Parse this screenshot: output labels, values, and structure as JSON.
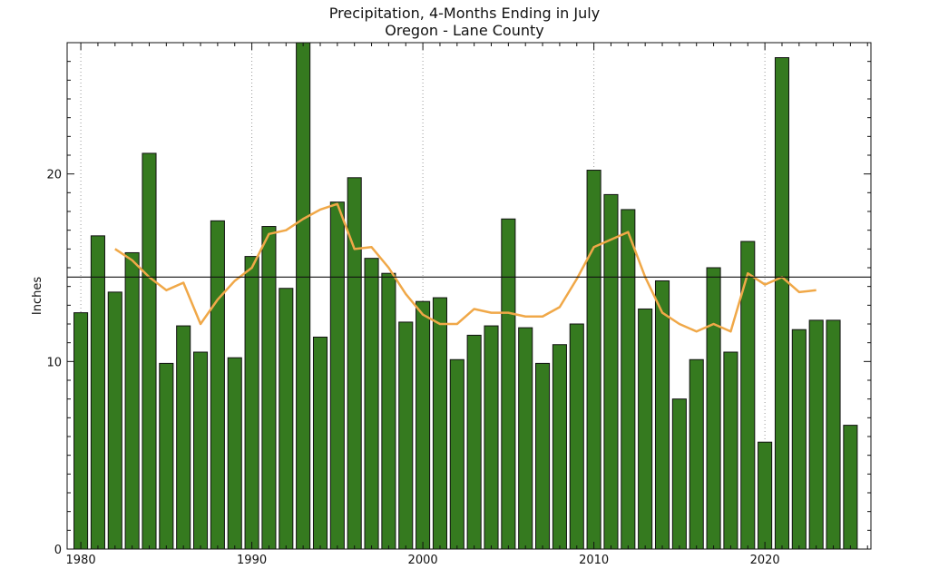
{
  "chart_data": {
    "type": "bar",
    "title": "Precipitation, 4-Months Ending in July",
    "subtitle": "Oregon - Lane County",
    "xlabel": "",
    "ylabel": "Inches",
    "xlim": [
      1979.2,
      2026.2
    ],
    "ylim": [
      0,
      27
    ],
    "x_ticks": [
      1980,
      1990,
      2000,
      2010,
      2020
    ],
    "y_ticks": [
      0,
      10,
      20
    ],
    "grid": "vertical dotted at x ticks",
    "x": [
      1980,
      1981,
      1982,
      1983,
      1984,
      1985,
      1986,
      1987,
      1988,
      1989,
      1990,
      1991,
      1992,
      1993,
      1994,
      1995,
      1996,
      1997,
      1998,
      1999,
      2000,
      2001,
      2002,
      2003,
      2004,
      2005,
      2006,
      2007,
      2008,
      2009,
      2010,
      2011,
      2012,
      2013,
      2014,
      2015,
      2016,
      2017,
      2018,
      2019,
      2020,
      2021,
      2022,
      2023,
      2024,
      2025
    ],
    "series": [
      {
        "type": "bar",
        "color": "#357a1f",
        "values": [
          12.6,
          16.7,
          13.7,
          15.8,
          21.1,
          9.9,
          11.9,
          10.5,
          17.5,
          10.2,
          15.6,
          17.2,
          13.9,
          27.0,
          11.3,
          18.5,
          19.8,
          15.5,
          14.7,
          12.1,
          13.2,
          13.4,
          10.1,
          11.4,
          11.9,
          17.6,
          11.8,
          9.9,
          10.9,
          12.0,
          20.2,
          18.9,
          18.1,
          12.8,
          14.3,
          8.0,
          10.1,
          15.0,
          10.5,
          16.4,
          5.7,
          26.2,
          11.7,
          12.2,
          12.2,
          6.6
        ]
      },
      {
        "type": "line",
        "color": "#f0a848",
        "x": [
          1982,
          1983,
          1984,
          1985,
          1986,
          1987,
          1988,
          1989,
          1990,
          1991,
          1992,
          1993,
          1994,
          1995,
          1996,
          1997,
          1998,
          1999,
          2000,
          2001,
          2002,
          2003,
          2004,
          2005,
          2006,
          2007,
          2008,
          2009,
          2010,
          2011,
          2012,
          2013,
          2014,
          2015,
          2016,
          2017,
          2018,
          2019,
          2020,
          2021,
          2022,
          2023
        ],
        "values": [
          16.0,
          15.4,
          14.5,
          13.8,
          14.2,
          12.0,
          13.3,
          14.3,
          15.0,
          16.8,
          17.0,
          17.6,
          18.1,
          18.4,
          16.0,
          16.1,
          15.0,
          13.6,
          12.5,
          12.0,
          12.0,
          12.8,
          12.6,
          12.6,
          12.4,
          12.4,
          12.9,
          14.4,
          16.1,
          16.5,
          16.9,
          14.5,
          12.6,
          12.0,
          11.6,
          12.0,
          11.6,
          14.7,
          14.1,
          14.5,
          13.7,
          13.8
        ]
      },
      {
        "type": "hline",
        "color": "#111111",
        "value": 14.5
      }
    ]
  }
}
